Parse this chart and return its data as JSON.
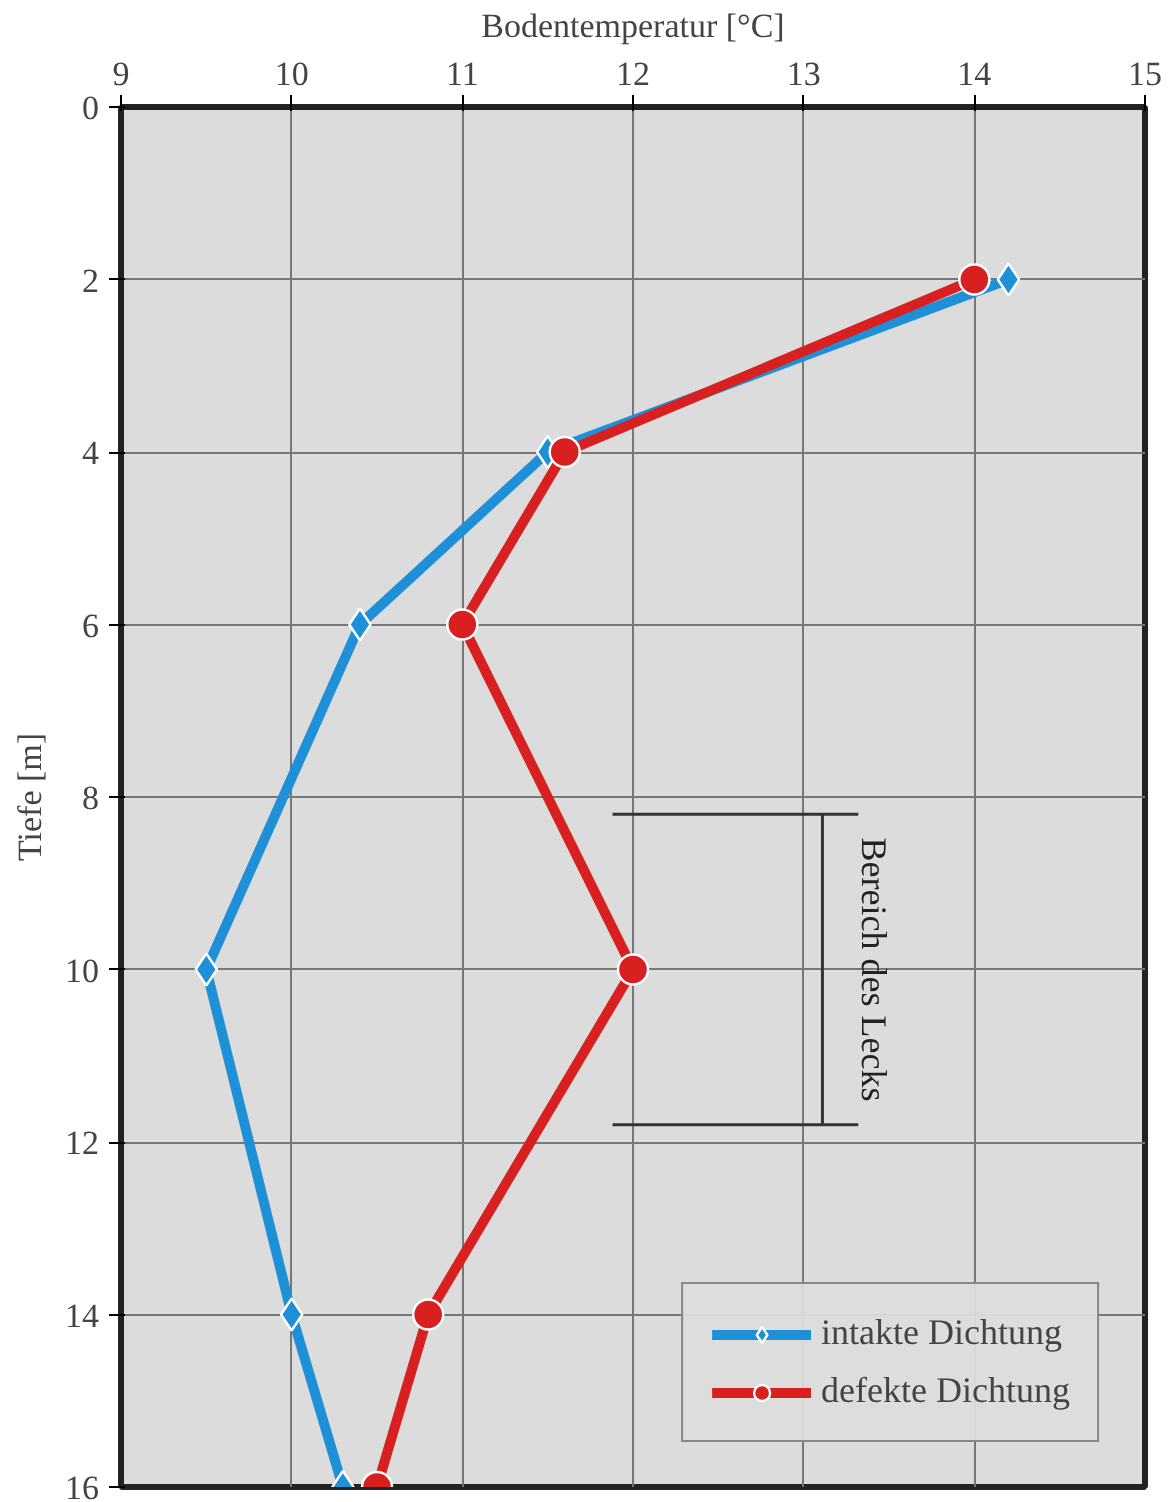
{
  "chart_data": {
    "type": "line",
    "xlabel": "Bodentemperatur [°C]",
    "ylabel": "Tiefe [m]",
    "xlim": [
      9,
      15
    ],
    "xticks": [
      9,
      10,
      11,
      12,
      13,
      14,
      15
    ],
    "ylim": [
      16,
      0
    ],
    "yticks": [
      0,
      2,
      4,
      6,
      8,
      10,
      12,
      14,
      16
    ],
    "grid": true,
    "legend": "bottom right",
    "orientation": "horizontal",
    "series": [
      {
        "name": "intakte Dichtung",
        "color": "#1e90d8",
        "marker": "diamond",
        "x": [
          2,
          4,
          6,
          10,
          14,
          16
        ],
        "values": [
          14.2,
          11.5,
          10.4,
          9.5,
          10.0,
          10.3
        ]
      },
      {
        "name": "defekte Dichtung",
        "color": "#d92020",
        "marker": "circle",
        "x": [
          2,
          4,
          6,
          10,
          14,
          16
        ],
        "values": [
          14.0,
          11.6,
          11.0,
          12.0,
          10.8,
          10.5
        ]
      }
    ],
    "ref_lines": [
      {
        "axis": "y",
        "value": 8.2,
        "color": "#333333"
      },
      {
        "axis": "y",
        "value": 11.8,
        "color": "#333333"
      }
    ],
    "annotations": [
      "Bereich des Lecks"
    ]
  }
}
